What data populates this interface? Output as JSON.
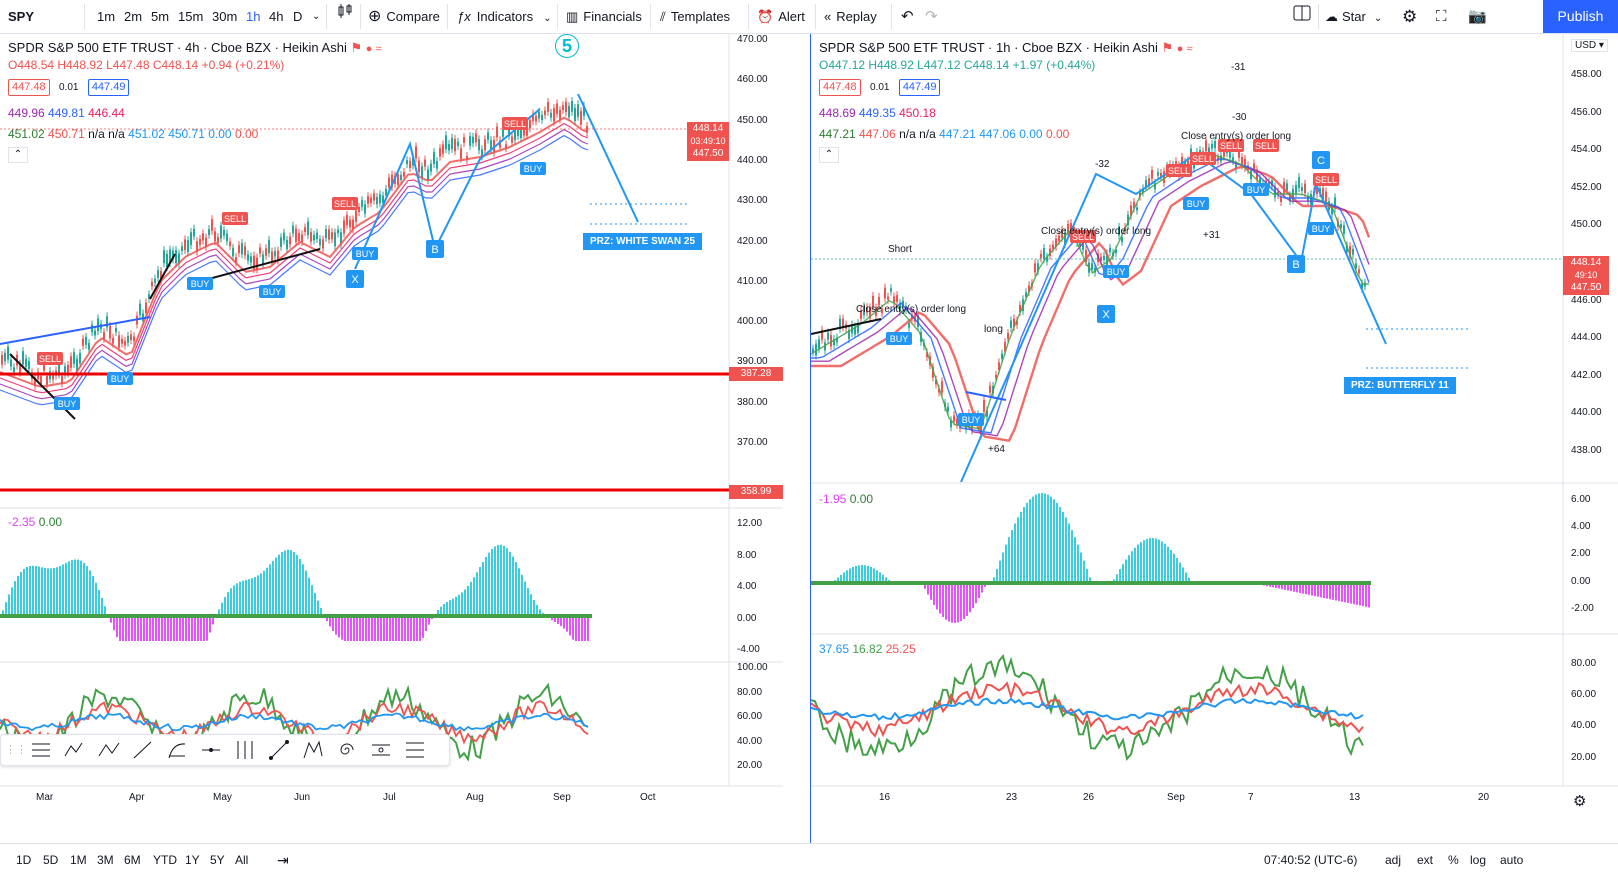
{
  "toolbar": {
    "symbol": "SPY",
    "intervals": [
      "1m",
      "2m",
      "5m",
      "15m",
      "30m",
      "1h",
      "4h",
      "D"
    ],
    "active_interval": "1h",
    "compare": "Compare",
    "indicators": "Indicators",
    "financials": "Financials",
    "templates": "Templates",
    "alert": "Alert",
    "replay": "Replay",
    "star": "Star",
    "publish": "Publish"
  },
  "left_chart": {
    "title": "SPDR S&P 500 ETF TRUST · 4h · Cboe BZX · Heikin Ashi",
    "ohlc": {
      "o": "O448.54",
      "h": "H448.92",
      "l": "L447.48",
      "c": "C448.14",
      "chg": "+0.94 (+0.21%)"
    },
    "bid": "447.48",
    "spread": "0.01",
    "ask": "447.49",
    "ma_row1": [
      "449.96",
      "449.81",
      "446.44"
    ],
    "ma_row2": [
      "451.02",
      "450.71",
      "n/a",
      "n/a",
      "451.02",
      "450.71",
      "0.00",
      "0.00"
    ],
    "price_axis": [
      "470.00",
      "460.00",
      "450.00",
      "440.00",
      "430.00",
      "420.00",
      "410.00",
      "400.00",
      "390.00",
      "380.00",
      "370.00"
    ],
    "price_tags": {
      "current": "448.14",
      "countdown": "03:49:10",
      "red": "447.50",
      "line1": "387.28",
      "line2": "358.99"
    },
    "wave_label": "5",
    "prz": "PRZ: WHITE SWAN 25",
    "osc_legend": [
      "-2.35",
      "0.00"
    ],
    "osc_axis": [
      "12.00",
      "8.00",
      "4.00",
      "0.00",
      "-4.00"
    ],
    "rsi_axis": [
      "100.00",
      "80.00",
      "60.00",
      "40.00",
      "20.00"
    ],
    "time_axis": [
      "Mar",
      "Apr",
      "May",
      "Jun",
      "Jul",
      "Aug",
      "Sep",
      "Oct"
    ]
  },
  "right_chart": {
    "title": "SPDR S&P 500 ETF TRUST · 1h · Cboe BZX · Heikin Ashi",
    "ohlc": {
      "o": "O447.12",
      "h": "H448.92",
      "l": "L447.12",
      "c": "C448.14",
      "chg": "+1.97 (+0.44%)"
    },
    "bid": "447.48",
    "spread": "0.01",
    "ask": "447.49",
    "ma_row1": [
      "448.69",
      "449.35",
      "450.18"
    ],
    "ma_row2": [
      "447.21",
      "447.06",
      "n/a",
      "n/a",
      "447.21",
      "447.06",
      "0.00",
      "0.00"
    ],
    "currency": "USD",
    "price_axis": [
      "458.00",
      "456.00",
      "454.00",
      "452.00",
      "450.00",
      "448.00",
      "446.00",
      "444.00",
      "442.00",
      "440.00",
      "438.00"
    ],
    "price_tags": {
      "current": "448.14",
      "countdown": "49:10",
      "red": "447.50"
    },
    "prz": "PRZ: BUTTERFLY 11",
    "osc_legend": [
      "-1.95",
      "0.00"
    ],
    "osc_axis": [
      "6.00",
      "4.00",
      "2.00",
      "0.00",
      "-2.00"
    ],
    "rsi_legend": [
      "37.65",
      "16.82",
      "25.25"
    ],
    "rsi_axis": [
      "80.00",
      "60.00",
      "40.00",
      "20.00"
    ],
    "time_axis": [
      "16",
      "23",
      "26",
      "Sep",
      "7",
      "13",
      "20"
    ],
    "annotations": [
      "Close entry(s) order long",
      "Close entry(s) order long",
      "Close entry(s) order long",
      "Short",
      "long",
      "-32",
      "+31",
      "+64",
      "-31",
      "-30"
    ]
  },
  "bottom": {
    "ranges": [
      "1D",
      "5D",
      "1M",
      "3M",
      "6M",
      "YTD",
      "1Y",
      "5Y",
      "All"
    ],
    "clock": "07:40:52 (UTC-6)",
    "right": [
      "adj",
      "ext",
      "%",
      "log",
      "auto"
    ]
  },
  "colors": {
    "accent": "#2962ff",
    "up": "#26a69a",
    "down": "#ef5350",
    "teal": "#00bcd4"
  }
}
